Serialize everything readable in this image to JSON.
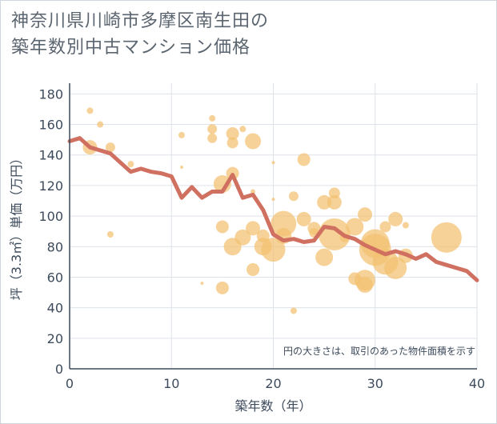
{
  "title_lines": [
    "神奈川県川崎市多摩区南生田の",
    "築年数別中古マンション価格"
  ],
  "chart_data": {
    "type": "scatter",
    "title": "神奈川県川崎市多摩区南生田の築年数別中古マンション価格",
    "xlabel": "築年数（年）",
    "ylabel": "坪（3.3㎡）単価（万円）",
    "xlim": [
      0,
      40
    ],
    "ylim": [
      0,
      187
    ],
    "xticks": [
      0,
      10,
      20,
      30,
      40
    ],
    "yticks": [
      0,
      20,
      40,
      60,
      80,
      100,
      120,
      140,
      160,
      180
    ],
    "grid": true,
    "annotation": "円の大きさは、取引のあった物件面積を示す",
    "colors": {
      "bubble": "#f2c170",
      "line": "#d07060",
      "grid": "#dde3ea",
      "axis": "#3d4b5c"
    },
    "series": [
      {
        "kind": "bubbles",
        "points": [
          {
            "x": 2,
            "y": 169,
            "s": 4
          },
          {
            "x": 2,
            "y": 145,
            "s": 9
          },
          {
            "x": 3,
            "y": 160,
            "s": 4
          },
          {
            "x": 4,
            "y": 145,
            "s": 6
          },
          {
            "x": 4,
            "y": 88,
            "s": 4
          },
          {
            "x": 6,
            "y": 134,
            "s": 4
          },
          {
            "x": 11,
            "y": 153,
            "s": 4
          },
          {
            "x": 11,
            "y": 132,
            "s": 2
          },
          {
            "x": 13,
            "y": 56,
            "s": 2
          },
          {
            "x": 14,
            "y": 164,
            "s": 4
          },
          {
            "x": 14,
            "y": 157,
            "s": 6
          },
          {
            "x": 14,
            "y": 151,
            "s": 6
          },
          {
            "x": 15,
            "y": 121,
            "s": 11
          },
          {
            "x": 15,
            "y": 93,
            "s": 8
          },
          {
            "x": 15,
            "y": 53,
            "s": 8
          },
          {
            "x": 16,
            "y": 154,
            "s": 8
          },
          {
            "x": 16,
            "y": 148,
            "s": 7
          },
          {
            "x": 16,
            "y": 128,
            "s": 8
          },
          {
            "x": 16,
            "y": 80,
            "s": 11
          },
          {
            "x": 17,
            "y": 157,
            "s": 4
          },
          {
            "x": 17,
            "y": 86,
            "s": 10
          },
          {
            "x": 18,
            "y": 149,
            "s": 10
          },
          {
            "x": 18,
            "y": 116,
            "s": 3
          },
          {
            "x": 18,
            "y": 92,
            "s": 9
          },
          {
            "x": 18,
            "y": 65,
            "s": 8
          },
          {
            "x": 19,
            "y": 87,
            "s": 8
          },
          {
            "x": 19,
            "y": 80,
            "s": 11
          },
          {
            "x": 20,
            "y": 135,
            "s": 2
          },
          {
            "x": 20,
            "y": 111,
            "s": 2
          },
          {
            "x": 20,
            "y": 78,
            "s": 15
          },
          {
            "x": 21,
            "y": 95,
            "s": 16
          },
          {
            "x": 21,
            "y": 87,
            "s": 10
          },
          {
            "x": 22,
            "y": 113,
            "s": 6
          },
          {
            "x": 22,
            "y": 38,
            "s": 4
          },
          {
            "x": 23,
            "y": 137,
            "s": 8
          },
          {
            "x": 23,
            "y": 98,
            "s": 9
          },
          {
            "x": 24,
            "y": 92,
            "s": 8
          },
          {
            "x": 24,
            "y": 89,
            "s": 6
          },
          {
            "x": 25,
            "y": 109,
            "s": 9
          },
          {
            "x": 25,
            "y": 73,
            "s": 11
          },
          {
            "x": 26,
            "y": 115,
            "s": 7
          },
          {
            "x": 26,
            "y": 109,
            "s": 9
          },
          {
            "x": 26,
            "y": 88,
            "s": 20
          },
          {
            "x": 27,
            "y": 86,
            "s": 6
          },
          {
            "x": 28,
            "y": 93,
            "s": 11
          },
          {
            "x": 28,
            "y": 59,
            "s": 8
          },
          {
            "x": 29,
            "y": 101,
            "s": 9
          },
          {
            "x": 29,
            "y": 58,
            "s": 13
          },
          {
            "x": 29,
            "y": 55,
            "s": 10
          },
          {
            "x": 30,
            "y": 82,
            "s": 18
          },
          {
            "x": 30,
            "y": 78,
            "s": 20
          },
          {
            "x": 31,
            "y": 93,
            "s": 7
          },
          {
            "x": 31,
            "y": 70,
            "s": 16
          },
          {
            "x": 32,
            "y": 98,
            "s": 9
          },
          {
            "x": 32,
            "y": 66,
            "s": 14
          },
          {
            "x": 33,
            "y": 94,
            "s": 4
          },
          {
            "x": 33,
            "y": 74,
            "s": 9
          },
          {
            "x": 37,
            "y": 86,
            "s": 19
          }
        ]
      },
      {
        "kind": "line",
        "x": [
          0,
          1,
          2,
          3,
          4,
          5,
          6,
          7,
          8,
          9,
          10,
          11,
          12,
          13,
          14,
          15,
          16,
          17,
          18,
          19,
          20,
          21,
          22,
          23,
          24,
          25,
          26,
          27,
          28,
          29,
          30,
          31,
          32,
          33,
          34,
          35,
          36,
          37,
          38,
          39,
          40
        ],
        "values": [
          149,
          151,
          145,
          143,
          141,
          135,
          129,
          131,
          129,
          128,
          126,
          112,
          119,
          112,
          116,
          116,
          127,
          112,
          114,
          104,
          88,
          84,
          85,
          83,
          84,
          93,
          92,
          87,
          85,
          81,
          78,
          75,
          77,
          75,
          72,
          75,
          70,
          68,
          66,
          64,
          58
        ]
      }
    ]
  }
}
